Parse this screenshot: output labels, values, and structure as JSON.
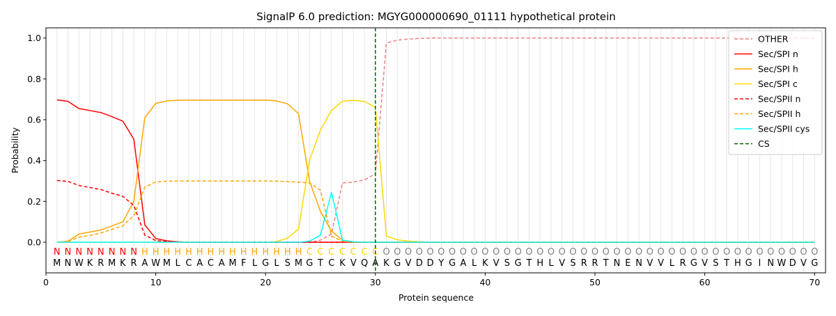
{
  "chart_data": {
    "type": "line",
    "title": "SignalP 6.0 prediction: MGYG000000690_01111 hypothetical protein",
    "x_label": "Protein sequence",
    "y_label": "Probability",
    "xlim": [
      0,
      71
    ],
    "ylim": [
      -0.15,
      1.05
    ],
    "xticks": [
      0,
      10,
      20,
      30,
      40,
      50,
      60,
      70
    ],
    "yticks": [
      {
        "value": 0,
        "label": "0.0"
      },
      0.2,
      0.4,
      0.6,
      0.8,
      {
        "value": 1,
        "label": "1.0"
      }
    ],
    "legend": "upper right",
    "x": [
      1,
      2,
      3,
      4,
      5,
      6,
      7,
      8,
      9,
      10,
      11,
      12,
      13,
      14,
      15,
      16,
      17,
      18,
      19,
      20,
      21,
      22,
      23,
      24,
      25,
      26,
      27,
      28,
      29,
      30,
      31,
      32,
      33,
      34,
      35,
      36,
      37,
      38,
      39,
      40,
      41,
      42,
      43,
      44,
      45,
      46,
      47,
      48,
      49,
      50,
      51,
      52,
      53,
      54,
      55,
      56,
      57,
      58,
      59,
      60,
      61,
      62,
      63,
      64,
      65,
      66,
      67,
      68,
      69,
      70
    ],
    "sequence": [
      "M",
      "N",
      "W",
      "K",
      "R",
      "M",
      "K",
      "R",
      "A",
      "W",
      "M",
      "L",
      "C",
      "A",
      "C",
      "A",
      "M",
      "F",
      "L",
      "G",
      "L",
      "S",
      "M",
      "G",
      "T",
      "C",
      "K",
      "V",
      "Q",
      "A",
      "K",
      "G",
      "V",
      "D",
      "D",
      "Y",
      "G",
      "A",
      "L",
      "K",
      "V",
      "S",
      "G",
      "T",
      "H",
      "L",
      "V",
      "S",
      "R",
      "R",
      "T",
      "N",
      "E",
      "N",
      "V",
      "V",
      "L",
      "R",
      "G",
      "V",
      "S",
      "T",
      "H",
      "G",
      "I",
      "N",
      "W",
      "D",
      "V",
      "G"
    ],
    "regions": [
      "N",
      "N",
      "N",
      "N",
      "N",
      "N",
      "N",
      "N",
      "H",
      "H",
      "H",
      "H",
      "H",
      "H",
      "H",
      "H",
      "H",
      "H",
      "H",
      "H",
      "H",
      "H",
      "H",
      "C",
      "C",
      "C",
      "C",
      "C",
      "C",
      "C",
      "O",
      "O",
      "O",
      "O",
      "O",
      "O",
      "O",
      "O",
      "O",
      "O",
      "O",
      "O",
      "O",
      "O",
      "O",
      "O",
      "O",
      "O",
      "O",
      "O",
      "O",
      "O",
      "O",
      "O",
      "O",
      "O",
      "O",
      "O",
      "O",
      "O",
      "O",
      "O",
      "O",
      "O",
      "O",
      "O",
      "O",
      "O",
      "O",
      "O"
    ],
    "region_colors": {
      "N": "#ff0000",
      "H": "#ffa500",
      "C": "#ffd700",
      "O": "#808080"
    },
    "series": [
      {
        "name": "OTHER",
        "color": "#f08080",
        "dashed": true,
        "values": [
          0,
          0,
          0,
          0,
          0,
          0,
          0,
          0,
          0,
          0,
          0,
          0,
          0,
          0,
          0,
          0,
          0,
          0,
          0,
          0,
          0,
          0,
          0,
          0,
          0.01,
          0.04,
          0.29,
          0.295,
          0.305,
          0.335,
          0.975,
          0.99,
          0.995,
          0.998,
          1,
          1,
          1,
          1,
          1,
          1,
          1,
          1,
          1,
          1,
          1,
          1,
          1,
          1,
          1,
          1,
          1,
          1,
          1,
          1,
          1,
          1,
          1,
          1,
          1,
          1,
          1,
          1,
          1,
          1,
          1,
          1,
          1,
          1,
          1,
          1
        ]
      },
      {
        "name": "Sec/SPI n",
        "color": "#ff0000",
        "dashed": false,
        "values": [
          0.697,
          0.69,
          0.655,
          0.645,
          0.635,
          0.615,
          0.593,
          0.505,
          0.085,
          0.018,
          0.007,
          0.002,
          0,
          0,
          0,
          0,
          0,
          0,
          0,
          0,
          0,
          0,
          0,
          0,
          0,
          0,
          0,
          0,
          0,
          0,
          0,
          0,
          0,
          0,
          0,
          0,
          0,
          0,
          0,
          0,
          0,
          0,
          0,
          0,
          0,
          0,
          0,
          0,
          0,
          0,
          0,
          0,
          0,
          0,
          0,
          0,
          0,
          0,
          0,
          0,
          0,
          0,
          0,
          0,
          0,
          0,
          0,
          0,
          0,
          0
        ]
      },
      {
        "name": "Sec/SPI h",
        "color": "#ffa500",
        "dashed": false,
        "values": [
          0,
          0.005,
          0.04,
          0.05,
          0.06,
          0.08,
          0.1,
          0.2,
          0.61,
          0.68,
          0.692,
          0.695,
          0.696,
          0.696,
          0.696,
          0.696,
          0.696,
          0.696,
          0.696,
          0.696,
          0.692,
          0.678,
          0.63,
          0.3,
          0.15,
          0.055,
          0.01,
          0.002,
          0,
          0,
          0,
          0,
          0,
          0,
          0,
          0,
          0,
          0,
          0,
          0,
          0,
          0,
          0,
          0,
          0,
          0,
          0,
          0,
          0,
          0,
          0,
          0,
          0,
          0,
          0,
          0,
          0,
          0,
          0,
          0,
          0,
          0,
          0,
          0,
          0,
          0,
          0,
          0,
          0,
          0
        ]
      },
      {
        "name": "Sec/SPI c",
        "color": "#ffd700",
        "dashed": false,
        "values": [
          0,
          0,
          0,
          0,
          0,
          0,
          0,
          0,
          0,
          0,
          0,
          0,
          0,
          0,
          0,
          0,
          0,
          0,
          0,
          0,
          0.003,
          0.02,
          0.065,
          0.4,
          0.55,
          0.645,
          0.69,
          0.695,
          0.69,
          0.66,
          0.03,
          0.012,
          0.005,
          0.002,
          0,
          0,
          0,
          0,
          0,
          0,
          0,
          0,
          0,
          0,
          0,
          0,
          0,
          0,
          0,
          0,
          0,
          0,
          0,
          0,
          0,
          0,
          0,
          0,
          0,
          0,
          0,
          0,
          0,
          0,
          0,
          0,
          0,
          0,
          0,
          0
        ]
      },
      {
        "name": "Sec/SPII n",
        "color": "#ff0000",
        "dashed": true,
        "values": [
          0.302,
          0.298,
          0.278,
          0.268,
          0.258,
          0.24,
          0.225,
          0.18,
          0.035,
          0.008,
          0.003,
          0.001,
          0,
          0,
          0,
          0,
          0,
          0,
          0,
          0,
          0,
          0,
          0,
          0,
          0,
          0,
          0,
          0,
          0,
          0,
          0,
          0,
          0,
          0,
          0,
          0,
          0,
          0,
          0,
          0,
          0,
          0,
          0,
          0,
          0,
          0,
          0,
          0,
          0,
          0,
          0,
          0,
          0,
          0,
          0,
          0,
          0,
          0,
          0,
          0,
          0,
          0,
          0,
          0,
          0,
          0,
          0,
          0,
          0,
          0
        ]
      },
      {
        "name": "Sec/SPII h",
        "color": "#ffa500",
        "dashed": true,
        "values": [
          0,
          0.003,
          0.025,
          0.033,
          0.045,
          0.063,
          0.08,
          0.13,
          0.27,
          0.295,
          0.299,
          0.3,
          0.3,
          0.3,
          0.3,
          0.3,
          0.3,
          0.3,
          0.3,
          0.3,
          0.299,
          0.297,
          0.294,
          0.29,
          0.255,
          0.03,
          0.005,
          0,
          0,
          0,
          0,
          0,
          0,
          0,
          0,
          0,
          0,
          0,
          0,
          0,
          0,
          0,
          0,
          0,
          0,
          0,
          0,
          0,
          0,
          0,
          0,
          0,
          0,
          0,
          0,
          0,
          0,
          0,
          0,
          0,
          0,
          0,
          0,
          0,
          0,
          0,
          0,
          0,
          0,
          0
        ]
      },
      {
        "name": "Sec/SPII cys",
        "color": "#00ffff",
        "dashed": false,
        "values": [
          0,
          0,
          0,
          0,
          0,
          0,
          0,
          0,
          0,
          0,
          0,
          0,
          0,
          0,
          0,
          0,
          0,
          0,
          0,
          0,
          0,
          0,
          0,
          0.005,
          0.035,
          0.245,
          0.01,
          0.002,
          0,
          0,
          0,
          0,
          0,
          0,
          0,
          0,
          0,
          0,
          0,
          0,
          0,
          0,
          0,
          0,
          0,
          0,
          0,
          0,
          0,
          0,
          0,
          0,
          0,
          0,
          0,
          0,
          0,
          0,
          0,
          0,
          0,
          0,
          0,
          0,
          0,
          0,
          0,
          0,
          0,
          0
        ]
      }
    ],
    "cleavage_site": {
      "name": "CS",
      "x": 30,
      "color": "#006400"
    }
  }
}
